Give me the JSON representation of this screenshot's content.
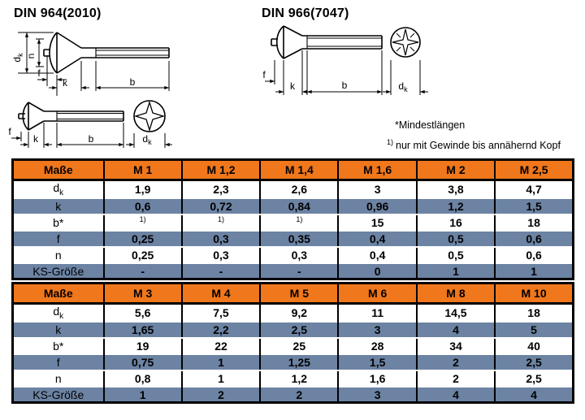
{
  "page": {
    "title_left": "DIN 964(2010)",
    "title_right": "DIN 966(7047)",
    "footnote_star": "*Mindestlängen",
    "footnote_one_sup": "1)",
    "footnote_one_text": "nur mit Gewinde bis annähernd Kopf"
  },
  "colors": {
    "header_bg": "#F0771B",
    "band_bg": "#6C83A3",
    "border": "#000000"
  },
  "drawing_labels": {
    "d_main": "d",
    "d_sub": "k",
    "n": "n",
    "f": "f",
    "k": "k",
    "b": "b"
  },
  "table1": {
    "header": [
      "Maße",
      "M 1",
      "M 1,2",
      "M 1,4",
      "M 1,6",
      "M 2",
      "M 2,5"
    ],
    "rows": [
      {
        "label_main": "d",
        "label_sub": "k",
        "values": [
          "1,9",
          "2,3",
          "2,6",
          "3",
          "3,8",
          "4,7"
        ]
      },
      {
        "label_main": "k",
        "label_sub": "",
        "values": [
          "0,6",
          "0,72",
          "0,84",
          "0,96",
          "1,2",
          "1,5"
        ]
      },
      {
        "label_main": "b*",
        "label_sub": "",
        "values": [
          "1)",
          "1)",
          "1)",
          "15",
          "16",
          "18"
        ]
      },
      {
        "label_main": "f",
        "label_sub": "",
        "values": [
          "0,25",
          "0,3",
          "0,35",
          "0,4",
          "0,5",
          "0,6"
        ]
      },
      {
        "label_main": "n",
        "label_sub": "",
        "values": [
          "0,25",
          "0,3",
          "0,3",
          "0,4",
          "0,5",
          "0,6"
        ]
      },
      {
        "label_main": "KS-Größe",
        "label_sub": "",
        "values": [
          "-",
          "-",
          "-",
          "0",
          "1",
          "1"
        ]
      }
    ]
  },
  "table2": {
    "header": [
      "Maße",
      "M 3",
      "M 4",
      "M 5",
      "M 6",
      "M 8",
      "M 10"
    ],
    "rows": [
      {
        "label_main": "d",
        "label_sub": "k",
        "values": [
          "5,6",
          "7,5",
          "9,2",
          "11",
          "14,5",
          "18"
        ]
      },
      {
        "label_main": "k",
        "label_sub": "",
        "values": [
          "1,65",
          "2,2",
          "2,5",
          "3",
          "4",
          "5"
        ]
      },
      {
        "label_main": "b*",
        "label_sub": "",
        "values": [
          "19",
          "22",
          "25",
          "28",
          "34",
          "40"
        ]
      },
      {
        "label_main": "f",
        "label_sub": "",
        "values": [
          "0,75",
          "1",
          "1,25",
          "1,5",
          "2",
          "2,5"
        ]
      },
      {
        "label_main": "n",
        "label_sub": "",
        "values": [
          "0,8",
          "1",
          "1,2",
          "1,6",
          "2",
          "2,5"
        ]
      },
      {
        "label_main": "KS-Größe",
        "label_sub": "",
        "values": [
          "1",
          "2",
          "2",
          "3",
          "4",
          "4"
        ]
      }
    ]
  }
}
